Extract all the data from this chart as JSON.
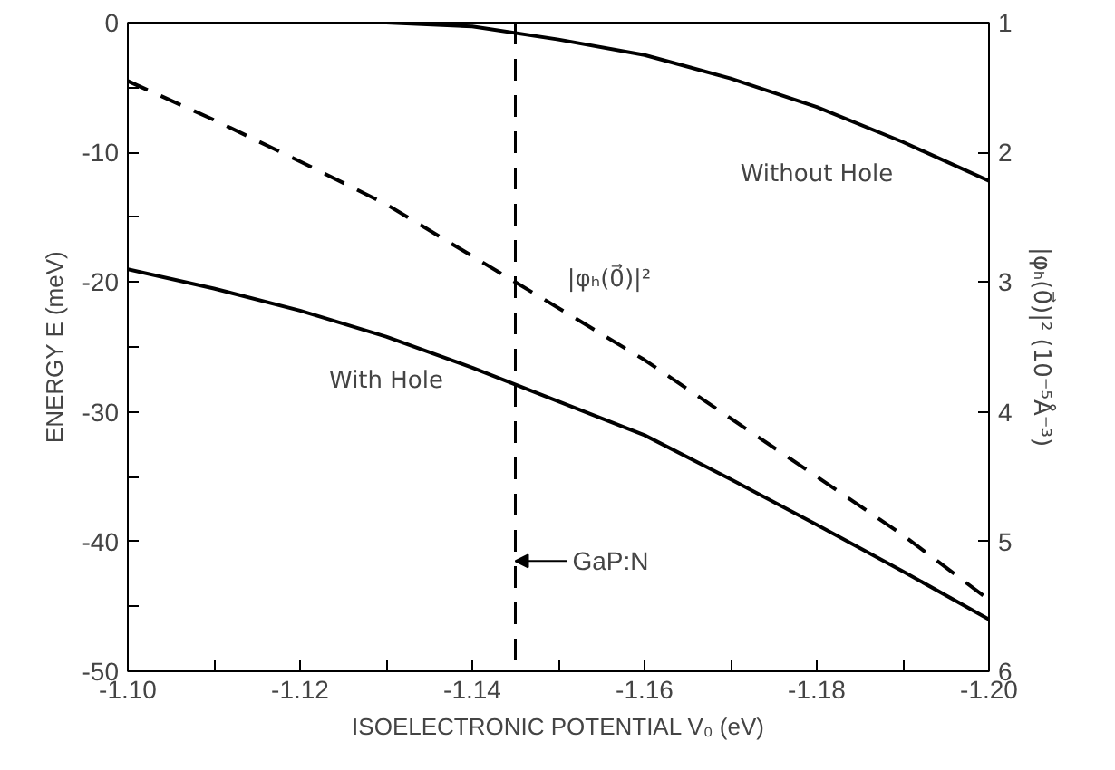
{
  "chart_data": {
    "type": "line",
    "xlabel": "ISOELECTRONIC POTENTIAL V₀ (eV)",
    "ylabel": "ENERGY E (meV)",
    "y2label": "|φₕ(0⃗)|² (10⁻⁵Å⁻³)",
    "x": [
      -1.1,
      -1.11,
      -1.12,
      -1.13,
      -1.14,
      -1.15,
      -1.16,
      -1.17,
      -1.18,
      -1.19,
      -1.2
    ],
    "series": [
      {
        "name": "Without Hole",
        "color": "#000000",
        "line_style": "solid",
        "values": [
          0,
          0,
          0,
          0,
          -0.3,
          -1.3,
          -2.5,
          -4.3,
          -6.5,
          -9.2,
          -12.2
        ]
      },
      {
        "name": "With Hole",
        "color": "#000000",
        "line_style": "solid",
        "values": [
          -19,
          -20.5,
          -22.2,
          -24.2,
          -26.6,
          -29.2,
          -31.8,
          -35.2,
          -38.7,
          -42.3,
          -46
        ]
      },
      {
        "name": "|φₕ(0⃗)|²",
        "color": "#000000",
        "line_style": "dashed",
        "axis": "y2",
        "values": [
          1.45,
          1.75,
          2.07,
          2.4,
          2.8,
          3.2,
          3.6,
          4.05,
          4.5,
          4.95,
          5.45
        ]
      }
    ],
    "xlim": [
      -1.1,
      -1.2
    ],
    "xticks": [
      {
        "value": -1.1,
        "label": "-1.10"
      },
      {
        "value": -1.11,
        "label": null
      },
      {
        "value": -1.12,
        "label": "-1.12"
      },
      {
        "value": -1.13,
        "label": null
      },
      {
        "value": -1.14,
        "label": "-1.14"
      },
      {
        "value": -1.15,
        "label": null
      },
      {
        "value": -1.16,
        "label": "-1.16"
      },
      {
        "value": -1.17,
        "label": null
      },
      {
        "value": -1.18,
        "label": "-1.18"
      },
      {
        "value": -1.19,
        "label": null
      },
      {
        "value": -1.2,
        "label": "-1.20"
      }
    ],
    "ylim": [
      -50,
      0
    ],
    "yticks": [
      -50,
      {
        "value": -45,
        "label": null
      },
      -40,
      {
        "value": -35,
        "label": null
      },
      -30,
      {
        "value": -25,
        "label": null
      },
      -20,
      {
        "value": -15,
        "label": null
      },
      -10,
      {
        "value": -5,
        "label": null
      },
      0
    ],
    "y2lim": [
      6,
      1
    ],
    "y2ticks": [
      1,
      2,
      3,
      4,
      5,
      6
    ],
    "ref_lines": [
      {
        "axis": "x",
        "value": -1.145,
        "label": "GaP:N",
        "color": "#000000",
        "line_style": "dashed"
      }
    ],
    "grid": false
  }
}
